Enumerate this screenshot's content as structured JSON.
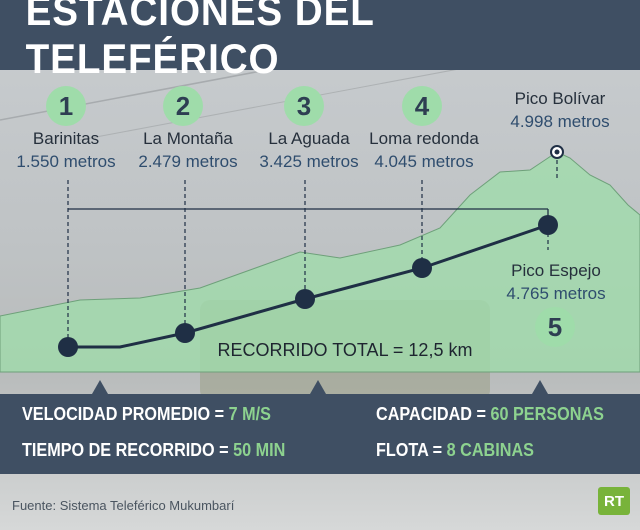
{
  "title": "ESTACIONES DEL TELEFÉRICO",
  "stations": [
    {
      "number": "1",
      "name": "Barinitas",
      "altitude": "1.550 metros"
    },
    {
      "number": "2",
      "name": "La Montaña",
      "altitude": "2.479 metros"
    },
    {
      "number": "3",
      "name": "La Aguada",
      "altitude": "3.425 metros"
    },
    {
      "number": "4",
      "name": "Loma redonda",
      "altitude": "4.045 metros"
    },
    {
      "number": "5",
      "name": "Pico Espejo",
      "altitude": "4.765 metros"
    }
  ],
  "peak": {
    "name": "Pico Bolívar",
    "altitude": "4.998 metros"
  },
  "route_total": "RECORRIDO TOTAL = 12,5 km",
  "stats": {
    "speed": {
      "label": "VELOCIDAD PROMEDIO = ",
      "value": "7 M/S"
    },
    "capacity": {
      "label": "CAPACIDAD = ",
      "value": "60 PERSONAS"
    },
    "time": {
      "label": "TIEMPO DE RECORRIDO = ",
      "value": "50 MIN"
    },
    "fleet": {
      "label": "FLOTA = ",
      "value": "8 CABINAS"
    }
  },
  "source": "Fuente: Sistema Teleférico Mukumbarí",
  "logo": "RT",
  "colors": {
    "band": "#3f4f63",
    "accent_green": "#8dd28f",
    "mountain": "#9fdcaa",
    "route": "#1f2f45"
  }
}
